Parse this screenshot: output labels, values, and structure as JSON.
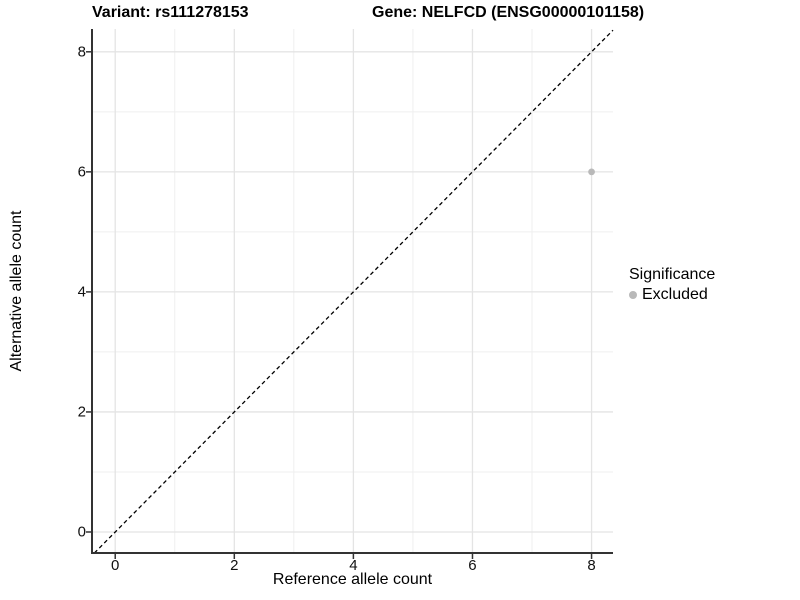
{
  "chart_data": {
    "type": "scatter",
    "title_left": "Variant: rs111278153",
    "title_right": "Gene: NELFCD (ENSG00000101158)",
    "xlabel": "Reference allele count",
    "ylabel": "Alternative allele count",
    "xlim": [
      -0.39,
      8.36
    ],
    "ylim": [
      -0.35,
      8.38
    ],
    "xticks": [
      0,
      2,
      4,
      6,
      8
    ],
    "yticks": [
      0,
      2,
      4,
      6,
      8
    ],
    "x_minor_ticks": [
      1,
      3,
      5,
      7
    ],
    "y_minor_ticks": [
      1,
      3,
      5,
      7
    ],
    "grid": true,
    "points": [
      {
        "x": 8,
        "y": 6,
        "series": "Excluded"
      }
    ],
    "reference_line": {
      "equation": "y = x",
      "style": "dashed",
      "color": "#000000"
    },
    "legend": {
      "position": "right",
      "title": "Significance",
      "items": [
        {
          "label": "Excluded",
          "color": "#b9b9b9"
        }
      ]
    },
    "colors": {
      "point": "#b9b9b9",
      "grid_major": "#e4e4e4",
      "grid_minor": "#efefef",
      "axis_line": "#333333",
      "tick_mark": "#333333",
      "background": "#ffffff"
    }
  }
}
